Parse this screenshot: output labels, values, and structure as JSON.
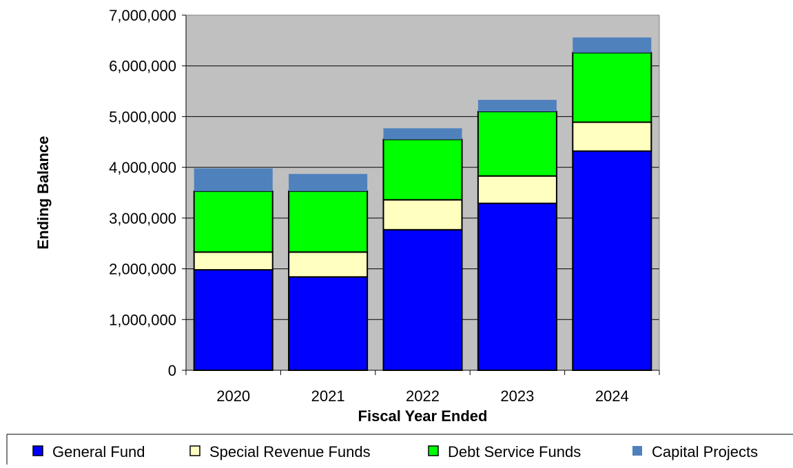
{
  "chart_data": {
    "type": "bar",
    "stacked": true,
    "categories": [
      "2020",
      "2021",
      "2022",
      "2023",
      "2024"
    ],
    "series": [
      {
        "name": "General Fund",
        "color": "#0000ff",
        "values": [
          1980000,
          1840000,
          2770000,
          3290000,
          4320000
        ]
      },
      {
        "name": "Special Revenue Funds",
        "color": "#ffffc0",
        "values": [
          350000,
          490000,
          590000,
          540000,
          570000
        ]
      },
      {
        "name": "Debt Service Funds",
        "color": "#00ff00",
        "values": [
          1200000,
          1200000,
          1190000,
          1270000,
          1370000
        ]
      },
      {
        "name": "Capital Projects",
        "color": "#4f81bd",
        "values": [
          450000,
          340000,
          220000,
          230000,
          300000
        ]
      }
    ],
    "xlabel": "Fiscal Year Ended",
    "ylabel": "Ending Balance",
    "ylim": [
      0,
      7000000
    ],
    "yticks": [
      "0",
      "1,000,000",
      "2,000,000",
      "3,000,000",
      "4,000,000",
      "5,000,000",
      "6,000,000",
      "7,000,000"
    ],
    "grid": true,
    "plot_background": "#c0c0c0",
    "legend_position": "bottom"
  }
}
